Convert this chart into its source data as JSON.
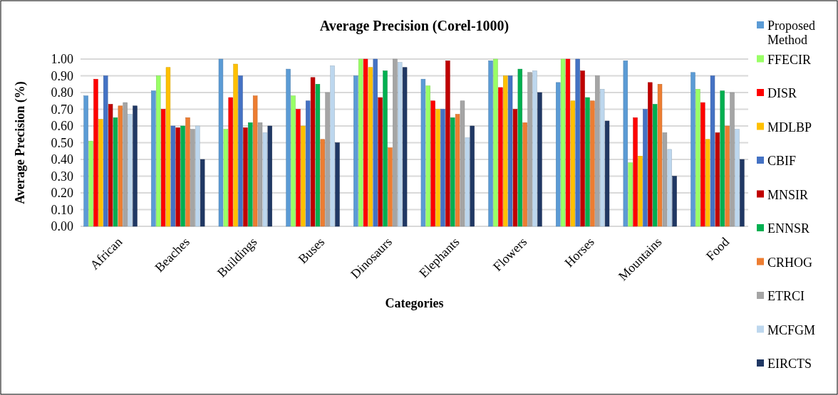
{
  "chart_data": {
    "type": "bar",
    "title": "Average Precision (Corel-1000)",
    "xlabel": "Categories",
    "ylabel": "Average Precision (%)",
    "categories": [
      "African",
      "Beaches",
      "Buildings",
      "Buses",
      "Dinosaurs",
      "Elephants",
      "Flowers",
      "Horses",
      "Mountains",
      "Food"
    ],
    "series": [
      {
        "name": "Proposed Method",
        "color": "#5b9bd5",
        "values": [
          0.78,
          0.81,
          1.0,
          0.94,
          0.9,
          0.88,
          0.99,
          0.86,
          0.99,
          0.92
        ]
      },
      {
        "name": "FFECIR",
        "color": "#99ff66",
        "values": [
          0.51,
          0.9,
          0.58,
          0.78,
          1.0,
          0.84,
          1.0,
          1.0,
          0.38,
          0.82
        ]
      },
      {
        "name": "DISR",
        "color": "#ff0000",
        "values": [
          0.88,
          0.7,
          0.77,
          0.7,
          1.0,
          0.75,
          0.83,
          1.0,
          0.65,
          0.74
        ]
      },
      {
        "name": "MDLBP",
        "color": "#ffc000",
        "values": [
          0.64,
          0.95,
          0.97,
          0.6,
          0.95,
          0.7,
          0.9,
          0.75,
          0.42,
          0.52
        ]
      },
      {
        "name": "CBIF",
        "color": "#4472c4",
        "values": [
          0.9,
          0.6,
          0.9,
          0.75,
          1.0,
          0.7,
          0.9,
          1.0,
          0.7,
          0.9
        ]
      },
      {
        "name": "MNSIR",
        "color": "#c00000",
        "values": [
          0.73,
          0.59,
          0.59,
          0.89,
          0.77,
          0.99,
          0.7,
          0.93,
          0.86,
          0.56
        ]
      },
      {
        "name": "ENNSR",
        "color": "#00b050",
        "values": [
          0.65,
          0.6,
          0.62,
          0.85,
          0.93,
          0.65,
          0.94,
          0.77,
          0.73,
          0.81
        ]
      },
      {
        "name": "CRHOG",
        "color": "#ed7d31",
        "values": [
          0.72,
          0.65,
          0.78,
          0.52,
          0.47,
          0.67,
          0.62,
          0.75,
          0.85,
          0.6
        ]
      },
      {
        "name": "ETRCI",
        "color": "#a5a5a5",
        "values": [
          0.74,
          0.58,
          0.62,
          0.8,
          1.0,
          0.75,
          0.92,
          0.9,
          0.56,
          0.8
        ]
      },
      {
        "name": "MCFGM",
        "color": "#bdd7ee",
        "values": [
          0.67,
          0.6,
          0.56,
          0.96,
          0.98,
          0.53,
          0.93,
          0.82,
          0.46,
          0.58
        ]
      },
      {
        "name": "EIRCTS",
        "color": "#203864",
        "values": [
          0.72,
          0.4,
          0.6,
          0.5,
          0.95,
          0.6,
          0.8,
          0.63,
          0.3,
          0.4
        ]
      }
    ],
    "ylim": [
      0,
      1
    ],
    "yticks": [
      {
        "value": 0,
        "label": "0.00"
      },
      {
        "value": 0.1,
        "label": "0.10"
      },
      {
        "value": 0.2,
        "label": "0.20"
      },
      {
        "value": 0.3,
        "label": "0.30"
      },
      {
        "value": 0.4,
        "label": "0.40"
      },
      {
        "value": 0.5,
        "label": "0.50"
      },
      {
        "value": 0.6,
        "label": "0.60"
      },
      {
        "value": 0.7,
        "label": "0.70"
      },
      {
        "value": 0.8,
        "label": "0.80"
      },
      {
        "value": 0.9,
        "label": "0.90"
      },
      {
        "value": 1,
        "label": "1.00"
      }
    ],
    "grid": "y",
    "legend": "right"
  }
}
